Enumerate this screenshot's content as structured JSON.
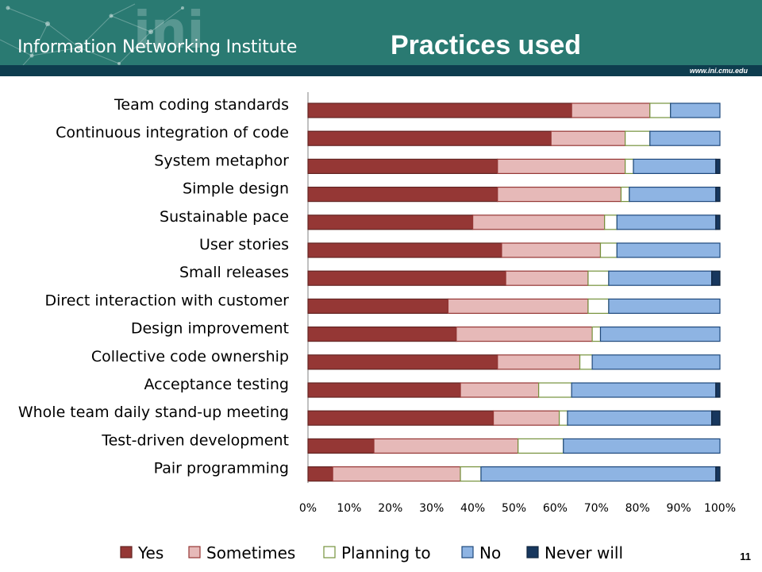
{
  "header": {
    "brand": "Information Networking Institute",
    "brand_mark": "ini",
    "title": "Practices used",
    "url": "www.ini.cmu.edu"
  },
  "footer": {
    "page_number": "11"
  },
  "colors": {
    "header_bg": "#2a7a72",
    "header_band": "#0e3d4e"
  },
  "chart_data": {
    "type": "bar",
    "orientation": "horizontal",
    "stacked": true,
    "percent": true,
    "categories": [
      "Team coding standards",
      "Continuous integration of code",
      "System metaphor",
      "Simple design",
      "Sustainable pace",
      "User stories",
      "Small releases",
      "Direct interaction with customer",
      "Design improvement",
      "Collective code ownership",
      "Acceptance testing",
      "Whole team daily stand-up meeting",
      "Test-driven development",
      "Pair programming"
    ],
    "series": [
      {
        "name": "Yes",
        "color": "#953735",
        "border": "#632523",
        "values": [
          64,
          59,
          46,
          46,
          40,
          47,
          48,
          34,
          36,
          46,
          37,
          45,
          16,
          6
        ]
      },
      {
        "name": "Sometimes",
        "color": "#e6b9b8",
        "border": "#953735",
        "values": [
          19,
          18,
          31,
          30,
          32,
          24,
          20,
          34,
          33,
          20,
          19,
          16,
          35,
          31
        ]
      },
      {
        "name": "Planning to",
        "color": "#ffffff",
        "border": "#76923c",
        "values": [
          5,
          6,
          2,
          2,
          3,
          4,
          5,
          5,
          2,
          3,
          8,
          2,
          11,
          5
        ]
      },
      {
        "name": "No",
        "color": "#8eb4e3",
        "border": "#1f497d",
        "values": [
          12,
          17,
          20,
          21,
          24,
          25,
          25,
          27,
          29,
          31,
          35,
          35,
          38,
          57
        ]
      },
      {
        "name": "Never will",
        "color": "#17375e",
        "border": "#0f243e",
        "values": [
          0,
          0,
          1,
          1,
          1,
          0,
          2,
          0,
          0,
          0,
          1,
          2,
          0,
          1
        ]
      }
    ],
    "xlim": [
      0,
      100
    ],
    "x_ticks": [
      "0%",
      "10%",
      "20%",
      "30%",
      "40%",
      "50%",
      "60%",
      "70%",
      "80%",
      "90%",
      "100%"
    ],
    "xlabel": "",
    "ylabel": "",
    "grid": false,
    "legend_position": "bottom"
  }
}
